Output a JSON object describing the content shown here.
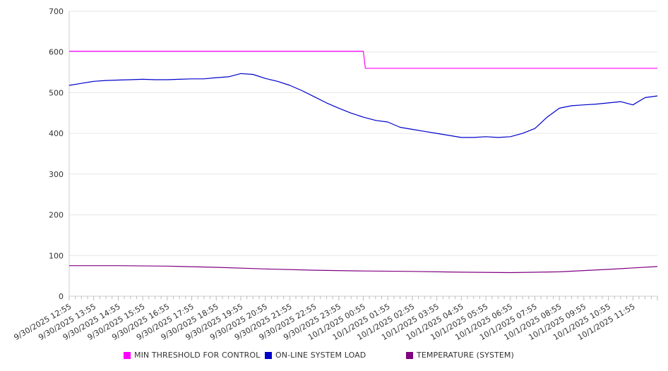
{
  "chart_data": {
    "type": "line",
    "title": "",
    "xlabel": "",
    "ylabel": "",
    "ylim": [
      0,
      700
    ],
    "yticks": [
      0,
      100,
      200,
      300,
      400,
      500,
      600,
      700
    ],
    "x_tick_labels": [
      "9/30/2025 12:55",
      "9/30/2025 13:55",
      "9/30/2025 14:55",
      "9/30/2025 15:55",
      "9/30/2025 16:55",
      "9/30/2025 17:55",
      "9/30/2025 18:55",
      "9/30/2025 19:55",
      "9/30/2025 20:55",
      "9/30/2025 21:55",
      "9/30/2025 22:55",
      "9/30/2025 23:55",
      "10/1/2025 00:55",
      "10/1/2025 01:55",
      "10/1/2025 02:55",
      "10/1/2025 03:55",
      "10/1/2025 04:55",
      "10/1/2025 05:55",
      "10/1/2025 06:55",
      "10/1/2025 07:55",
      "10/1/2025 08:55",
      "10/1/2025 09:55",
      "10/1/2025 10:55",
      "10/1/2025 11:55"
    ],
    "grid": true,
    "legend_position": "bottom",
    "series": [
      {
        "name": "MIN THRESHOLD FOR CONTROL",
        "color": "#ff00ff",
        "x": [
          "9/30/2025 12:55",
          "10/1/2025 00:55",
          "10/1/2025 01:00",
          "10/1/2025 12:55"
        ],
        "values": [
          602,
          602,
          560,
          560
        ]
      },
      {
        "name": "ON-LINE SYSTEM LOAD",
        "color": "#0000cc",
        "x": [
          "9/30/2025 12:55",
          "9/30/2025 13:25",
          "9/30/2025 13:55",
          "9/30/2025 14:25",
          "9/30/2025 14:55",
          "9/30/2025 15:25",
          "9/30/2025 15:55",
          "9/30/2025 16:25",
          "9/30/2025 16:55",
          "9/30/2025 17:25",
          "9/30/2025 17:55",
          "9/30/2025 18:25",
          "9/30/2025 18:55",
          "9/30/2025 19:25",
          "9/30/2025 19:55",
          "9/30/2025 20:25",
          "9/30/2025 20:55",
          "9/30/2025 21:25",
          "9/30/2025 21:55",
          "9/30/2025 22:25",
          "9/30/2025 22:55",
          "9/30/2025 23:25",
          "9/30/2025 23:55",
          "10/1/2025 00:25",
          "10/1/2025 00:55",
          "10/1/2025 01:25",
          "10/1/2025 01:55",
          "10/1/2025 02:25",
          "10/1/2025 02:55",
          "10/1/2025 03:25",
          "10/1/2025 03:55",
          "10/1/2025 04:25",
          "10/1/2025 04:55",
          "10/1/2025 05:25",
          "10/1/2025 05:55",
          "10/1/2025 06:25",
          "10/1/2025 06:55",
          "10/1/2025 07:25",
          "10/1/2025 07:55",
          "10/1/2025 08:25",
          "10/1/2025 08:55",
          "10/1/2025 09:25",
          "10/1/2025 09:55",
          "10/1/2025 10:25",
          "10/1/2025 10:55",
          "10/1/2025 11:25",
          "10/1/2025 11:55",
          "10/1/2025 12:25",
          "10/1/2025 12:55"
        ],
        "values": [
          518,
          523,
          528,
          530,
          531,
          532,
          533,
          532,
          532,
          533,
          534,
          534,
          537,
          539,
          547,
          545,
          535,
          528,
          518,
          505,
          490,
          475,
          462,
          450,
          440,
          432,
          428,
          415,
          410,
          405,
          400,
          395,
          390,
          390,
          392,
          390,
          392,
          400,
          412,
          440,
          462,
          468,
          470,
          472,
          475,
          478,
          470,
          488,
          492
        ]
      },
      {
        "name": "TEMPERATURE (SYSTEM)",
        "color": "#800080",
        "x": [
          "9/30/2025 12:55",
          "9/30/2025 14:55",
          "9/30/2025 16:55",
          "9/30/2025 18:55",
          "9/30/2025 20:55",
          "9/30/2025 22:55",
          "10/1/2025 00:55",
          "10/1/2025 02:55",
          "10/1/2025 04:55",
          "10/1/2025 06:55",
          "10/1/2025 08:55",
          "10/1/2025 10:55",
          "10/1/2025 12:55"
        ],
        "values": [
          75,
          75,
          74,
          71,
          67,
          64,
          62,
          61,
          59,
          58,
          60,
          66,
          73
        ]
      }
    ]
  }
}
